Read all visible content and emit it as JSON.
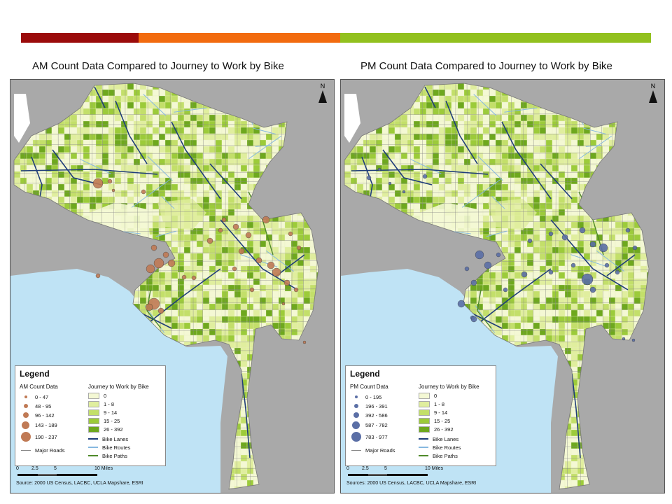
{
  "topbar": {
    "colors": [
      "#9b0b0b",
      "#f26b0f",
      "#92c11f"
    ]
  },
  "maps": [
    {
      "title": "AM Count Data Compared to Journey to Work by Bike",
      "north_label": "N",
      "legend": {
        "title": "Legend",
        "points_heading": "AM Count Data",
        "point_color": "#c07a55",
        "point_classes": [
          "0 - 47",
          "48 - 95",
          "96 - 142",
          "143 - 189",
          "190 - 237"
        ],
        "major_roads": "Major Roads",
        "choropleth_heading": "Journey to Work by Bike",
        "choropleth_classes": [
          "0",
          "1 - 8",
          "9 - 14",
          "15 - 25",
          "26 - 392"
        ],
        "bike_lanes": "Bike Lanes",
        "bike_routes": "Bike Routes",
        "bike_paths": "Bike Paths"
      },
      "scale": {
        "labels": [
          "0",
          "2.5",
          "5",
          "10 Miles"
        ]
      },
      "source": "Source: 2000 US Census, LACBC, UCLA Mapshare, ESRI"
    },
    {
      "title": "PM Count Data Compared to Journey to Work by Bike",
      "north_label": "N",
      "legend": {
        "title": "Legend",
        "points_heading": "PM Count Data",
        "point_color": "#5b6fa6",
        "point_classes": [
          "0 - 195",
          "196 - 391",
          "392 - 586",
          "587 - 782",
          "783 - 977"
        ],
        "major_roads": "Major Roads",
        "choropleth_heading": "Journey to Work by Bike",
        "choropleth_classes": [
          "0",
          "1 - 8",
          "9 - 14",
          "15 - 25",
          "26 - 392"
        ],
        "bike_lanes": "Bike Lanes",
        "bike_routes": "Bike Routes",
        "bike_paths": "Bike Paths"
      },
      "scale": {
        "labels": [
          "0",
          "2.5",
          "5",
          "10 Miles"
        ]
      },
      "source": "Sources: 2000 US Census, LACBC, UCLA Mapshare, ESRI"
    }
  ],
  "palette": {
    "ocean": "#bfe3f5",
    "land_outside": "#a9a9a9",
    "choropleth": [
      "#f4f8d4",
      "#e0ee9e",
      "#c3df6a",
      "#9ccb3a",
      "#6ea81e"
    ],
    "bike_lanes": "#1f3d7a",
    "bike_routes": "#86b8e0",
    "bike_paths": "#4f8a2a",
    "major_roads": "#8a8a8a"
  }
}
